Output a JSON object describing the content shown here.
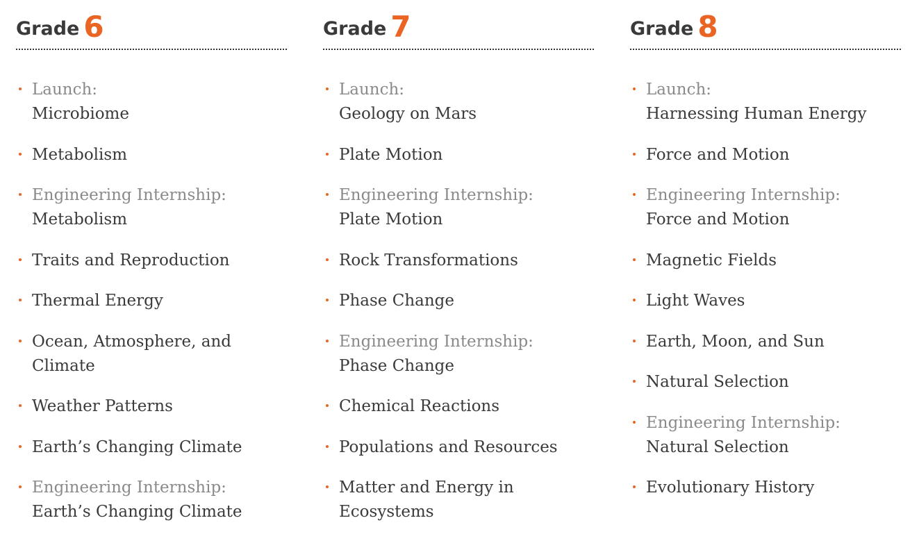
{
  "columns": [
    {
      "label": "Grade",
      "number": "6",
      "items": [
        {
          "prefix": "Launch:",
          "title": "Microbiome"
        },
        {
          "title": "Metabolism"
        },
        {
          "prefix": "Engineering Internship:",
          "title": "Metabolism"
        },
        {
          "title": "Traits and Reproduction"
        },
        {
          "title": "Thermal Energy"
        },
        {
          "title": "Ocean, Atmosphere, and Climate"
        },
        {
          "title": "Weather Patterns"
        },
        {
          "title": "Earth’s Changing Climate"
        },
        {
          "prefix": "Engineering Internship:",
          "title": "Earth’s Changing Climate"
        }
      ]
    },
    {
      "label": "Grade",
      "number": "7",
      "items": [
        {
          "prefix": "Launch:",
          "title": "Geology on Mars"
        },
        {
          "title": "Plate Motion"
        },
        {
          "prefix": "Engineering Internship:",
          "title": "Plate Motion"
        },
        {
          "title": "Rock Transformations"
        },
        {
          "title": "Phase Change"
        },
        {
          "prefix": "Engineering Internship:",
          "title": "Phase Change"
        },
        {
          "title": "Chemical Reactions"
        },
        {
          "title": "Populations and Resources"
        },
        {
          "title": "Matter and Energy in Ecosystems"
        }
      ]
    },
    {
      "label": "Grade",
      "number": "8",
      "items": [
        {
          "prefix": "Launch:",
          "title": "Harnessing Human Energy"
        },
        {
          "title": "Force and Motion"
        },
        {
          "prefix": "Engineering Internship:",
          "title": "Force and Motion"
        },
        {
          "title": "Magnetic Fields"
        },
        {
          "title": "Light Waves"
        },
        {
          "title": "Earth, Moon, and Sun"
        },
        {
          "title": "Natural Selection"
        },
        {
          "prefix": "Engineering Internship:",
          "title": "Natural Selection"
        },
        {
          "title": "Evolutionary History"
        }
      ]
    }
  ]
}
